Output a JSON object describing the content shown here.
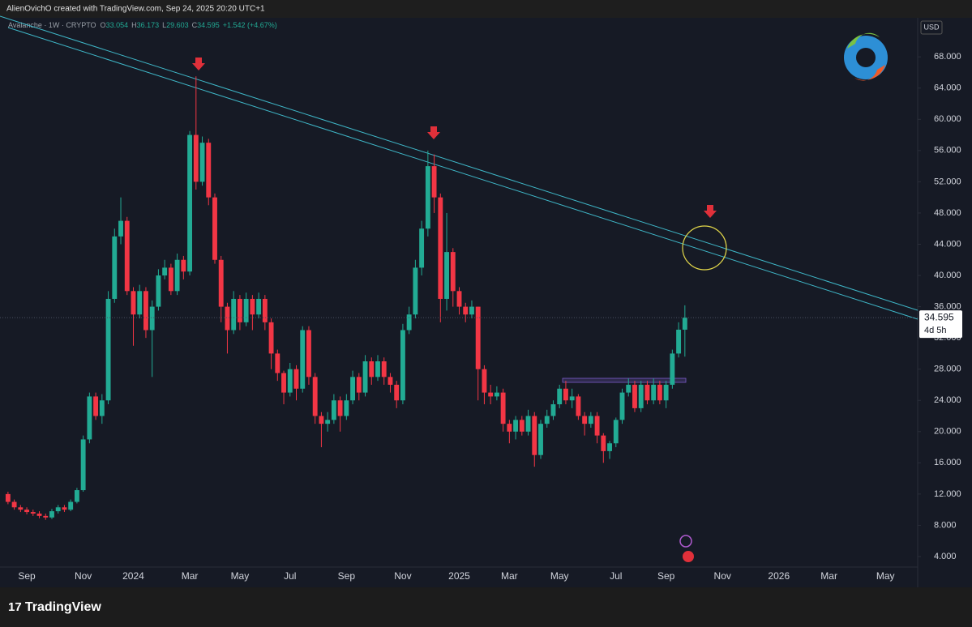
{
  "chart_data": {
    "type": "candlestick",
    "header": "AlienOvichO created with TradingView.com, Sep 24, 2025 20:20 UTC+1",
    "legend": {
      "symbol": "Avalanche · 1W · CRYPTO",
      "open_label": "O",
      "high_label": "H",
      "low_label": "L",
      "close_label": "C",
      "change": "+1.542 (+4.67%)"
    },
    "currency": "USD",
    "countdown": "4d 5h",
    "brand": "TradingView",
    "up_color": "#22ab94",
    "down_color": "#f23645",
    "categories": [
      null,
      null,
      null,
      "Sep",
      null,
      null,
      null,
      null,
      null,
      null,
      null,
      null,
      "Nov",
      null,
      null,
      null,
      null,
      null,
      null,
      null,
      "2024",
      null,
      null,
      null,
      null,
      null,
      null,
      null,
      null,
      "Mar",
      null,
      null,
      null,
      null,
      null,
      null,
      null,
      "May",
      null,
      null,
      null,
      null,
      null,
      null,
      null,
      "Jul",
      null,
      null,
      null,
      null,
      null,
      null,
      null,
      null,
      "Sep",
      null,
      null,
      null,
      null,
      null,
      null,
      null,
      null,
      "Nov",
      null,
      null,
      null,
      null,
      null,
      null,
      null,
      null,
      "2025",
      null,
      null,
      null,
      null,
      null,
      null,
      null,
      "Mar",
      null,
      null,
      null,
      null,
      null,
      null,
      null,
      "May",
      null,
      null,
      null,
      null,
      null,
      null,
      null,
      null,
      "Jul",
      null,
      null,
      null,
      null,
      null,
      null,
      null,
      "Sep",
      null,
      null,
      null,
      null,
      null,
      null,
      null,
      null,
      "Nov",
      null,
      null,
      null,
      null,
      null,
      null,
      null,
      null,
      "2026",
      null,
      null,
      null,
      null,
      null,
      null,
      null,
      "Mar",
      null,
      null,
      null,
      null,
      null,
      null,
      null,
      null,
      "May",
      null,
      null,
      null,
      null
    ],
    "open": [
      12.0,
      11.0,
      10.3,
      10.0,
      9.7,
      9.5,
      9.2,
      9.0,
      9.8,
      10.3,
      10.0,
      11.0,
      12.5,
      19.0,
      24.5,
      22.0,
      24.0,
      37.0,
      45.0,
      47.0,
      38.0,
      35.0,
      38.0,
      33.0,
      36.0,
      40.0,
      41.0,
      38.0,
      42.0,
      40.5,
      58.0,
      52.0,
      57.0,
      50.0,
      42.0,
      36.0,
      33.0,
      37.0,
      34.0,
      37.0,
      35.0,
      37.0,
      34.0,
      30.0,
      27.5,
      25.0,
      28.0,
      25.5,
      33.0,
      27.0,
      22.0,
      21.0,
      21.5,
      24.0,
      22.0,
      24.0,
      27.0,
      25.0,
      29.0,
      27.0,
      29.0,
      27.0,
      26.0,
      24.0,
      33.0,
      35.0,
      41.0,
      46.0,
      54.0,
      50.0,
      37.0,
      43.0,
      38.0,
      36.0,
      35.0,
      36.0,
      28.0,
      25.0,
      24.5,
      25.0,
      21.0,
      20.0,
      21.5,
      20.0,
      22.0,
      17.0,
      21.0,
      22.0,
      23.5,
      25.5,
      24.0,
      24.5,
      22.0,
      21.0,
      22.0,
      19.5,
      17.5,
      18.5,
      21.5,
      25.0,
      26.0,
      23.0,
      26.0,
      24.0,
      26.0,
      24.0,
      26.0,
      30.0,
      33.054,
      null,
      null,
      null,
      null,
      null,
      null,
      null,
      null,
      null,
      null,
      null,
      null,
      null,
      null,
      null,
      null,
      null,
      null,
      null,
      null,
      null,
      null,
      null,
      null,
      null,
      null,
      null,
      null,
      null,
      null,
      null,
      null,
      null,
      null,
      null,
      null
    ],
    "high": [
      12.3,
      11.3,
      10.6,
      10.3,
      10.0,
      9.8,
      9.5,
      10.1,
      10.6,
      10.6,
      11.3,
      12.8,
      19.5,
      25.0,
      25.0,
      24.8,
      38.0,
      46.0,
      50.0,
      47.5,
      38.5,
      38.8,
      38.5,
      36.8,
      40.8,
      42.0,
      41.5,
      42.8,
      42.5,
      58.5,
      65.5,
      57.8,
      57.5,
      50.5,
      42.5,
      36.5,
      38.0,
      37.5,
      37.8,
      37.5,
      37.8,
      37.5,
      34.5,
      30.5,
      27.8,
      28.8,
      28.5,
      33.5,
      33.5,
      27.5,
      22.5,
      22.5,
      24.8,
      24.5,
      24.8,
      27.8,
      27.5,
      29.8,
      29.5,
      29.8,
      29.5,
      27.5,
      26.5,
      33.8,
      36.0,
      42.0,
      47.0,
      56.0,
      55.5,
      50.5,
      48.0,
      43.5,
      38.5,
      36.5,
      36.8,
      36.0,
      28.5,
      26.0,
      25.8,
      25.5,
      21.5,
      22.0,
      22.0,
      22.8,
      22.5,
      21.5,
      22.8,
      24.0,
      26.0,
      26.5,
      25.5,
      24.8,
      22.5,
      22.5,
      22.5,
      19.8,
      18.8,
      21.8,
      25.5,
      26.8,
      26.5,
      26.5,
      26.5,
      26.8,
      26.5,
      26.5,
      30.5,
      34.0,
      36.173,
      null,
      null,
      null,
      null,
      null,
      null,
      null,
      null,
      null,
      null,
      null,
      null,
      null,
      null,
      null,
      null,
      null,
      null,
      null,
      null,
      null,
      null,
      null,
      null,
      null,
      null,
      null,
      null,
      null,
      null,
      null,
      null,
      null,
      null,
      null,
      null
    ],
    "low": [
      10.7,
      10.0,
      9.7,
      9.4,
      9.2,
      8.9,
      8.7,
      8.8,
      9.5,
      9.7,
      9.8,
      10.8,
      12.3,
      18.5,
      21.5,
      21.0,
      23.5,
      36.5,
      44.0,
      37.5,
      31.0,
      34.5,
      32.0,
      27.0,
      35.5,
      39.5,
      37.5,
      37.5,
      39.5,
      40.0,
      51.0,
      51.5,
      49.0,
      41.5,
      34.0,
      30.0,
      32.5,
      33.0,
      33.5,
      33.0,
      34.5,
      33.0,
      28.0,
      26.5,
      23.5,
      24.5,
      24.0,
      25.0,
      26.0,
      21.0,
      18.0,
      20.0,
      21.0,
      20.0,
      21.5,
      23.5,
      24.0,
      24.5,
      26.0,
      26.5,
      26.0,
      25.0,
      23.0,
      23.5,
      32.5,
      34.5,
      40.0,
      45.0,
      48.0,
      34.0,
      35.5,
      36.0,
      35.0,
      34.0,
      34.5,
      24.0,
      23.5,
      23.5,
      24.0,
      20.0,
      18.5,
      19.0,
      19.5,
      19.5,
      15.5,
      16.5,
      20.5,
      21.5,
      23.0,
      23.5,
      23.0,
      21.5,
      19.5,
      20.5,
      18.5,
      16.0,
      16.5,
      18.0,
      21.0,
      24.5,
      22.5,
      22.5,
      23.5,
      23.5,
      23.5,
      23.0,
      25.5,
      29.5,
      29.603,
      null,
      null,
      null,
      null,
      null,
      null,
      null,
      null,
      null,
      null,
      null,
      null,
      null,
      null,
      null,
      null,
      null,
      null,
      null,
      null,
      null,
      null,
      null,
      null,
      null,
      null,
      null,
      null,
      null,
      null,
      null,
      null,
      null,
      null,
      null,
      null
    ],
    "close": [
      11.0,
      10.3,
      10.0,
      9.7,
      9.5,
      9.2,
      9.0,
      9.8,
      10.3,
      10.0,
      11.0,
      12.5,
      19.0,
      24.5,
      22.0,
      24.0,
      37.0,
      45.0,
      47.0,
      38.0,
      35.0,
      38.0,
      33.0,
      36.0,
      40.0,
      41.0,
      38.0,
      42.0,
      40.5,
      58.0,
      52.0,
      57.0,
      50.0,
      42.0,
      36.0,
      33.0,
      37.0,
      34.0,
      37.0,
      35.0,
      37.0,
      34.0,
      30.0,
      27.5,
      25.0,
      28.0,
      25.5,
      33.0,
      27.0,
      22.0,
      21.0,
      21.5,
      24.0,
      22.0,
      24.0,
      27.0,
      25.0,
      29.0,
      27.0,
      29.0,
      27.0,
      26.0,
      24.0,
      33.0,
      35.0,
      41.0,
      46.0,
      54.0,
      50.0,
      37.0,
      43.0,
      38.0,
      36.0,
      35.0,
      36.0,
      28.0,
      25.0,
      24.5,
      25.0,
      21.0,
      20.0,
      21.5,
      20.0,
      22.0,
      17.0,
      21.0,
      22.0,
      23.5,
      25.5,
      24.0,
      24.5,
      22.0,
      21.0,
      22.0,
      19.5,
      17.5,
      18.5,
      21.5,
      25.0,
      26.0,
      23.0,
      26.0,
      24.0,
      26.0,
      24.0,
      26.0,
      30.0,
      33.054,
      34.595,
      null,
      null,
      null,
      null,
      null,
      null,
      null,
      null,
      null,
      null,
      null,
      null,
      null,
      null,
      null,
      null,
      null,
      null,
      null,
      null,
      null,
      null,
      null,
      null,
      null,
      null,
      null,
      null,
      null,
      null,
      null,
      null,
      null,
      null,
      null,
      null
    ],
    "ylim": [
      2.65,
      73.0
    ],
    "yticks": [
      {
        "value": 4,
        "label": "4.000"
      },
      {
        "value": 8,
        "label": "8.000"
      },
      {
        "value": 12,
        "label": "12.000"
      },
      {
        "value": 16,
        "label": "16.000"
      },
      {
        "value": 20,
        "label": "20.000"
      },
      {
        "value": 24,
        "label": "24.000"
      },
      {
        "value": 28,
        "label": "28.000"
      },
      {
        "value": 32,
        "label": "32.000"
      },
      {
        "value": 36,
        "label": "36.000"
      },
      {
        "value": 40,
        "label": "40.000"
      },
      {
        "value": 44,
        "label": "44.000"
      },
      {
        "value": 48,
        "label": "48.000"
      },
      {
        "value": 52,
        "label": "52.000"
      },
      {
        "value": 56,
        "label": "56.000"
      },
      {
        "value": 60,
        "label": "60.000"
      },
      {
        "value": 64,
        "label": "64.000"
      },
      {
        "value": 68,
        "label": "68.000"
      }
    ],
    "grid": false
  }
}
